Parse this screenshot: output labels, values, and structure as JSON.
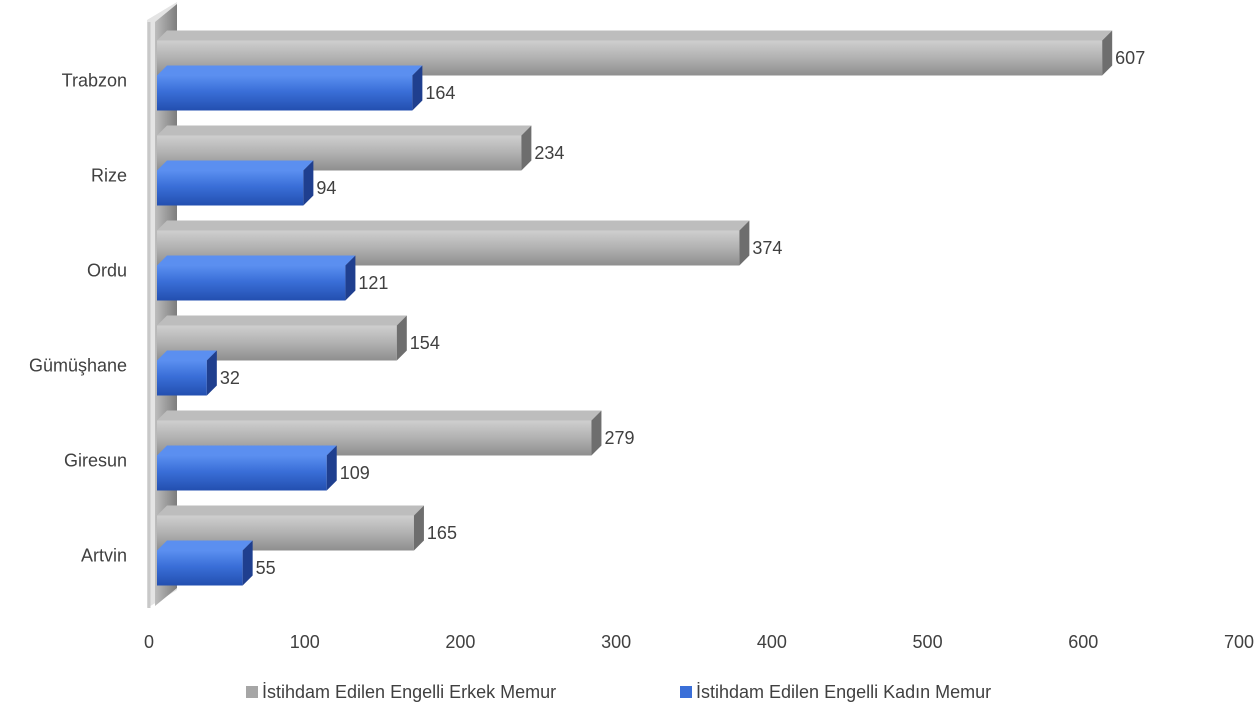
{
  "chart_data": {
    "type": "bar",
    "orientation": "horizontal",
    "style": "3d",
    "categories": [
      "Artvin",
      "Giresun",
      "Gümüşhane",
      "Ordu",
      "Rize",
      "Trabzon"
    ],
    "series": [
      {
        "name": "İstihdam Edilen Engelli Erkek Memur",
        "values": [
          165,
          279,
          154,
          374,
          234,
          607
        ],
        "color": "#a6a6a6"
      },
      {
        "name": "İstihdam Edilen Engelli Kadın Memur",
        "values": [
          55,
          109,
          32,
          121,
          94,
          164
        ],
        "color": "#3a6fd8"
      }
    ],
    "xlim": [
      0,
      700
    ],
    "x_ticks": [
      0,
      100,
      200,
      300,
      400,
      500,
      600,
      700
    ],
    "grid": false,
    "legend": "bottom",
    "title": "",
    "xlabel": "",
    "ylabel": ""
  }
}
